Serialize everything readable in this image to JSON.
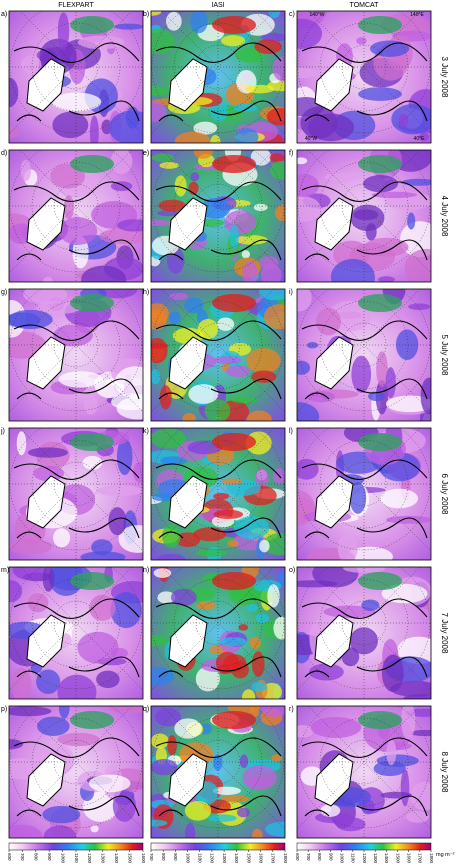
{
  "columns": [
    "FLEXPART",
    "IASI",
    "TOMCAT"
  ],
  "rows": [
    {
      "date": "3 July 2008",
      "panels": [
        "a)",
        "b)",
        "c)"
      ]
    },
    {
      "date": "4 July 2008",
      "panels": [
        "d)",
        "e)",
        "f)"
      ]
    },
    {
      "date": "5 July 2008",
      "panels": [
        "g)",
        "h)",
        "i)"
      ]
    },
    {
      "date": "6 July 2008",
      "panels": [
        "j)",
        "k)",
        "l)"
      ]
    },
    {
      "date": "7 July 2008",
      "panels": [
        "m)",
        "n)",
        "o)"
      ]
    },
    {
      "date": "8 July 2008",
      "panels": [
        "p)",
        "q)",
        "r)"
      ]
    }
  ],
  "map_labels": [
    "140°W",
    "140°E",
    "40°W",
    "40°E"
  ],
  "colorbars": [
    {
      "ticks": [
        600,
        700,
        800,
        900,
        1000,
        1100,
        1200,
        1300,
        1400,
        1500,
        1600
      ]
    },
    {
      "ticks": [
        700,
        800,
        900,
        1000,
        1100,
        1200,
        1300,
        1400,
        1500,
        1600,
        1700,
        1800
      ]
    },
    {
      "ticks": [
        600,
        700,
        800,
        900,
        1000,
        1100,
        1200,
        1300,
        1400,
        1500,
        1600,
        1700,
        1800
      ]
    }
  ],
  "unit": "mg m⁻²"
}
